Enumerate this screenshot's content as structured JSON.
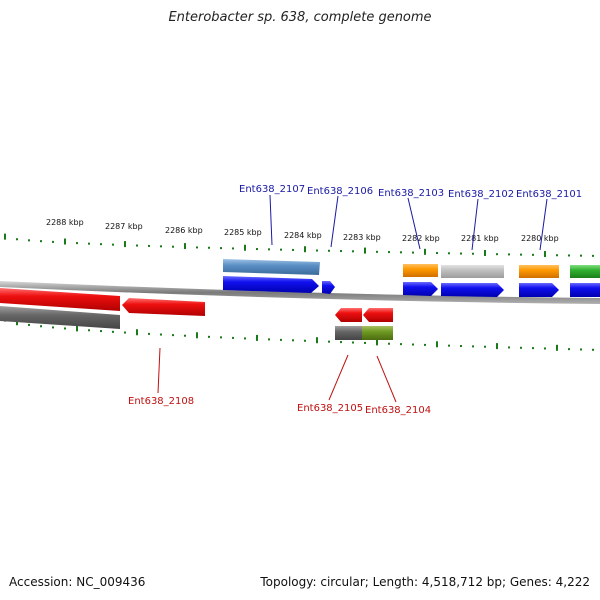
{
  "title": "Enterobacter sp. 638, complete genome",
  "footer": {
    "accession": "Accession: NC_009436",
    "summary": "Topology: circular; Length: 4,518,712 bp; Genes: 4,222"
  },
  "colors": {
    "forward_label": "#1a1aa6",
    "reverse_label": "#c01010",
    "tick": "#1a7a1a",
    "backbone": "#8a8a8a"
  },
  "ticks": [
    {
      "label": "2288 kbp"
    },
    {
      "label": "2287 kbp"
    },
    {
      "label": "2286 kbp"
    },
    {
      "label": "2285 kbp"
    },
    {
      "label": "2284 kbp"
    },
    {
      "label": "2283 kbp"
    },
    {
      "label": "2282 kbp"
    },
    {
      "label": "2281 kbp"
    },
    {
      "label": "2280 kbp"
    }
  ],
  "gene_labels": {
    "forward": [
      "Ent638_2107",
      "Ent638_2106",
      "Ent638_2103",
      "Ent638_2102",
      "Ent638_2101"
    ],
    "reverse": [
      "Ent638_2108",
      "Ent638_2105",
      "Ent638_2104"
    ]
  }
}
